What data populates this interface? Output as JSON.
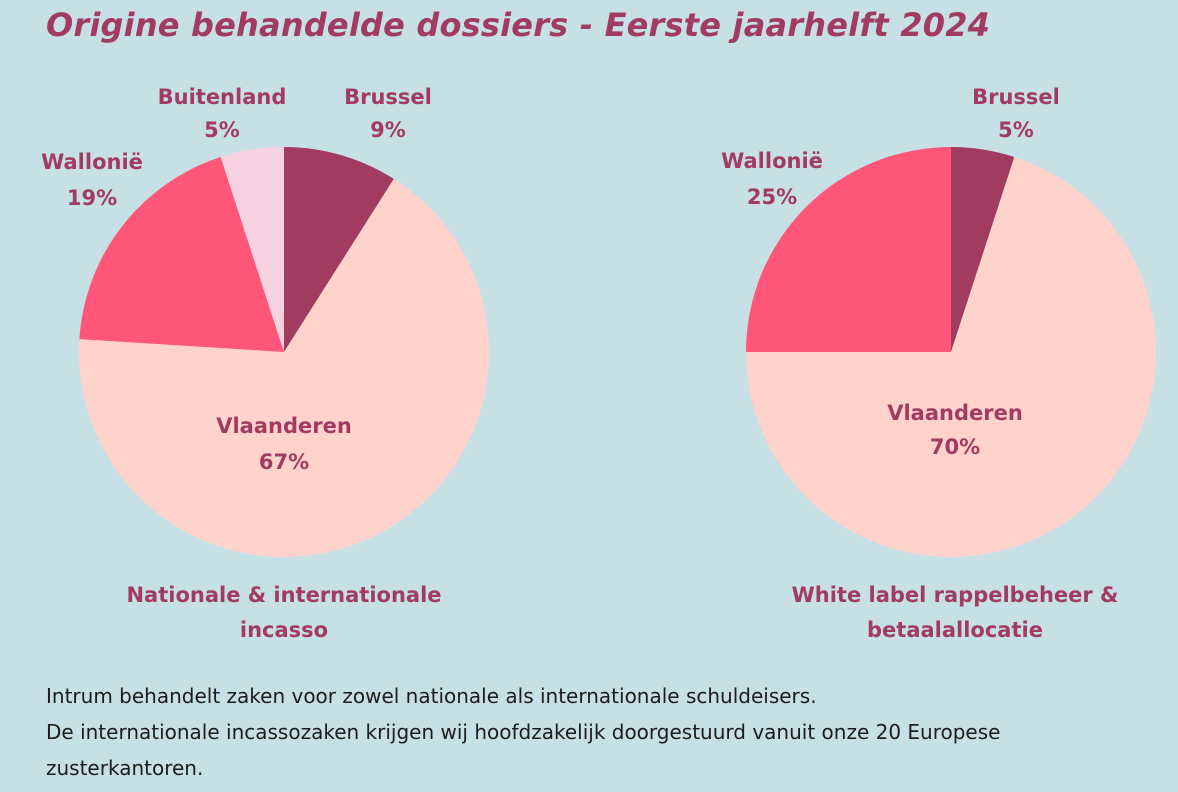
{
  "title": "Origine behandelde dossiers - Eerste jaarhelft 2024",
  "chart_data": [
    {
      "type": "pie",
      "title": "Nationale & internationale incasso",
      "title_lines": [
        "Nationale & internationale",
        "incasso"
      ],
      "slices": [
        {
          "name": "Brussel",
          "value": 9,
          "label": "9%",
          "color": "#a13b60"
        },
        {
          "name": "Vlaanderen",
          "value": 67,
          "label": "67%",
          "color": "#ffd3cc"
        },
        {
          "name": "Wallonië",
          "value": 19,
          "label": "19%",
          "color": "#ff5679"
        },
        {
          "name": "Buitenland",
          "value": 5,
          "label": "5%",
          "color": "#f6d2e1"
        }
      ]
    },
    {
      "type": "pie",
      "title": "White label rappelbeheer & betaalallocatie",
      "title_lines": [
        "White label rappelbeheer &",
        "betaalallocatie"
      ],
      "slices": [
        {
          "name": "Brussel",
          "value": 5,
          "label": "5%",
          "color": "#a13b60"
        },
        {
          "name": "Vlaanderen",
          "value": 70,
          "label": "70%",
          "color": "#ffd3cc"
        },
        {
          "name": "Wallonië",
          "value": 25,
          "label": "25%",
          "color": "#ff5679"
        }
      ]
    }
  ],
  "footer": {
    "line1": "Intrum behandelt zaken voor zowel nationale als internationale schuldeisers.",
    "line2": "De internationale incassozaken krijgen wij hoofdzakelijk doorgestuurd vanuit onze 20 Europese zusterkantoren."
  }
}
